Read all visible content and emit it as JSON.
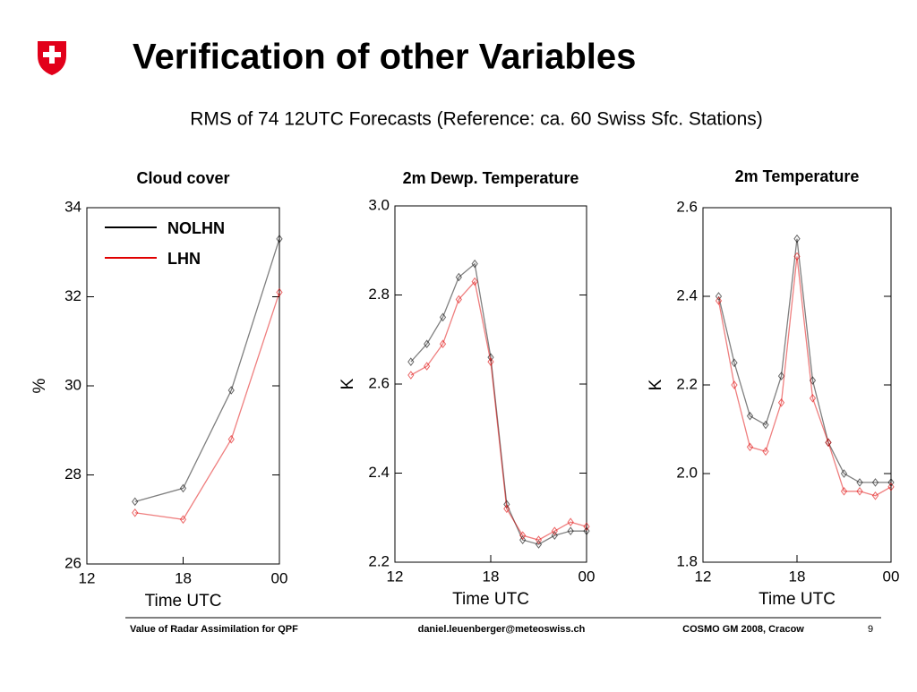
{
  "slide": {
    "title": "Verification of other Variables",
    "subtitle": "RMS of 74 12UTC Forecasts (Reference: ca. 60 Swiss Sfc. Stations)",
    "footer_left": "Value of Radar Assimilation for QPF",
    "footer_center": "daniel.leuenberger@meteoswiss.ch",
    "footer_right": "COSMO GM 2008, Cracow",
    "page": "9"
  },
  "chart_data": [
    {
      "type": "line",
      "title": "Cloud cover",
      "xlabel": "Time UTC",
      "ylabel": "%",
      "x": [
        15,
        18,
        21,
        24
      ],
      "xlim": [
        12,
        24
      ],
      "xticks": [
        12,
        18,
        {
          "value": 24,
          "label": "00"
        }
      ],
      "ylim": [
        26,
        34
      ],
      "yticks": [
        26,
        28,
        30,
        32,
        34
      ],
      "legend": "upper left",
      "series": [
        {
          "name": "NOLHN",
          "color": "#000000",
          "values": [
            27.4,
            27.7,
            29.9,
            33.3
          ]
        },
        {
          "name": "LHN",
          "color": "#e00000",
          "values": [
            27.15,
            27.0,
            28.8,
            32.1
          ]
        }
      ]
    },
    {
      "type": "line",
      "title": "2m Dewp. Temperature",
      "xlabel": "Time UTC",
      "ylabel": "K",
      "x": [
        13,
        14,
        15,
        16,
        17,
        18,
        19,
        20,
        21,
        22,
        23,
        24
      ],
      "xlim": [
        12,
        24
      ],
      "xticks": [
        12,
        18,
        {
          "value": 24,
          "label": "00"
        }
      ],
      "ylim": [
        2.2,
        3.0
      ],
      "yticks": [
        2.2,
        2.4,
        2.6,
        2.8,
        {
          "value": 3.0,
          "label": "3.0"
        }
      ],
      "series": [
        {
          "name": "NOLHN",
          "color": "#000000",
          "values": [
            2.65,
            2.69,
            2.75,
            2.84,
            2.87,
            2.66,
            2.33,
            2.25,
            2.24,
            2.26,
            2.27,
            2.27
          ]
        },
        {
          "name": "LHN",
          "color": "#e00000",
          "values": [
            2.62,
            2.64,
            2.69,
            2.79,
            2.83,
            2.65,
            2.32,
            2.26,
            2.25,
            2.27,
            2.29,
            2.28
          ]
        }
      ]
    },
    {
      "type": "line",
      "title": "2m Temperature",
      "xlabel": "Time UTC",
      "ylabel": "K",
      "x": [
        13,
        14,
        15,
        16,
        17,
        18,
        19,
        20,
        21,
        22,
        23,
        24
      ],
      "xlim": [
        12,
        24
      ],
      "xticks": [
        12,
        18,
        {
          "value": 24,
          "label": "00"
        }
      ],
      "ylim": [
        1.8,
        2.6
      ],
      "yticks": [
        1.8,
        {
          "value": 2.0,
          "label": "2.0"
        },
        2.2,
        2.4,
        2.6
      ],
      "series": [
        {
          "name": "NOLHN",
          "color": "#000000",
          "values": [
            2.4,
            2.25,
            2.13,
            2.11,
            2.22,
            2.53,
            2.21,
            2.07,
            2.0,
            1.98,
            1.98,
            1.98
          ]
        },
        {
          "name": "LHN",
          "color": "#e00000",
          "values": [
            2.39,
            2.2,
            2.06,
            2.05,
            2.16,
            2.49,
            2.17,
            2.07,
            1.96,
            1.96,
            1.95,
            1.97
          ]
        }
      ]
    }
  ]
}
